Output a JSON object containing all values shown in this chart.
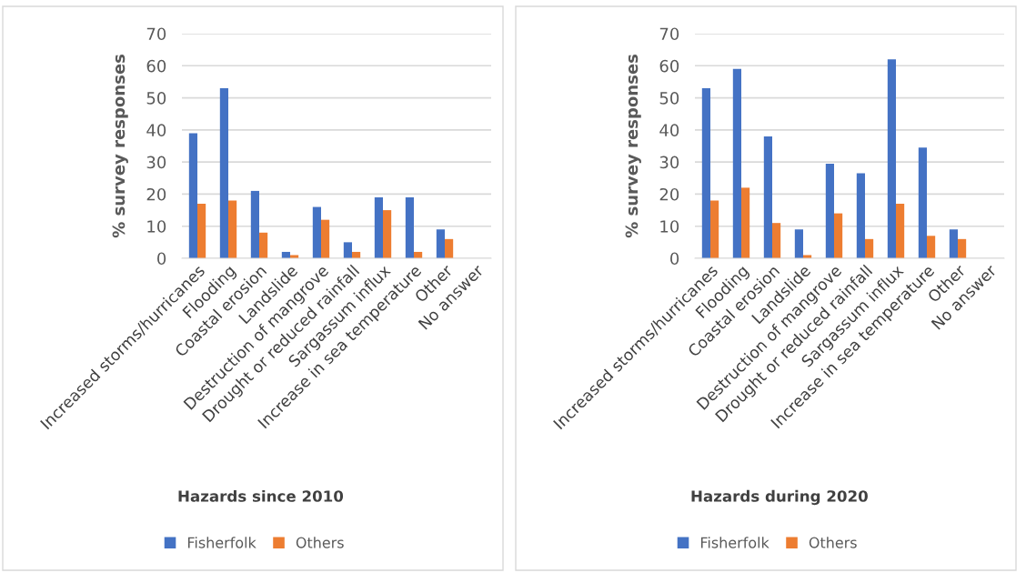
{
  "chart_data": [
    {
      "type": "bar",
      "xlabel": "Hazards since 2010",
      "ylabel": "% survey responses",
      "categories": [
        "Increased storms/hurricanes",
        "Flooding",
        "Coastal erosion",
        "Landslide",
        "Destruction of mangrove",
        "Drought or reduced rainfall",
        "Sargassum influx",
        "Increase in sea temperature",
        "Other",
        "No answer"
      ],
      "series": [
        {
          "name": "Fisherfolk",
          "color": "#4472c4",
          "values": [
            39,
            53,
            21,
            2,
            16,
            5,
            19,
            19,
            9,
            null
          ]
        },
        {
          "name": "Others",
          "color": "#ed7d31",
          "values": [
            17,
            18,
            8,
            1,
            12,
            2,
            15,
            2,
            6,
            null
          ]
        }
      ],
      "ylim": [
        0,
        70
      ],
      "yticks": [
        0,
        10,
        20,
        30,
        40,
        50,
        60,
        70
      ],
      "grid": "y",
      "legend": "bottom"
    },
    {
      "type": "bar",
      "xlabel": "Hazards during 2020",
      "ylabel": "% survey responses",
      "categories": [
        "Increased storms/hurricanes",
        "Flooding",
        "Coastal erosion",
        "Landslide",
        "Destruction of mangrove",
        "Drought or reduced rainfall",
        "Sargassum influx",
        "Increase in sea temperature",
        "Other",
        "No answer"
      ],
      "series": [
        {
          "name": "Fisherfolk",
          "color": "#4472c4",
          "values": [
            53,
            59,
            38,
            9,
            29.5,
            26.5,
            62,
            34.5,
            9,
            null
          ]
        },
        {
          "name": "Others",
          "color": "#ed7d31",
          "values": [
            18,
            22,
            11,
            1,
            14,
            6,
            17,
            7,
            6,
            null
          ]
        }
      ],
      "ylim": [
        0,
        70
      ],
      "yticks": [
        0,
        10,
        20,
        30,
        40,
        50,
        60,
        70
      ],
      "grid": "y",
      "legend": "bottom"
    }
  ]
}
